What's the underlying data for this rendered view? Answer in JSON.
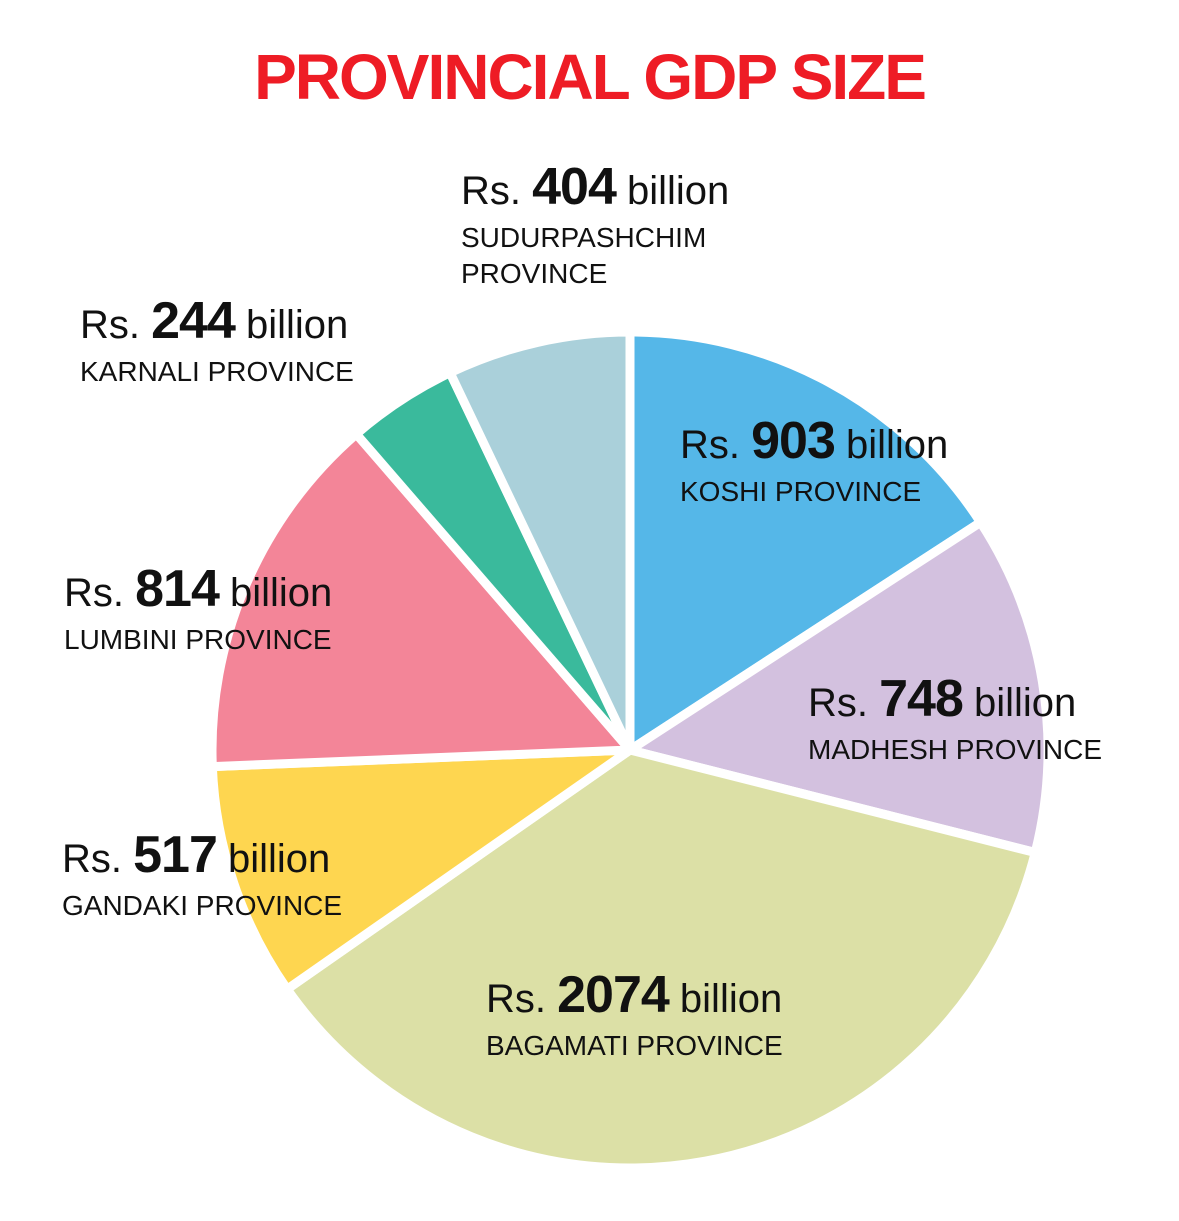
{
  "chart_data": {
    "type": "pie",
    "title": "PROVINCIAL GDP SIZE",
    "title_color": "#ee1c25",
    "slices": [
      {
        "name": "KOSHI PROVINCE",
        "prefix": "Rs.",
        "value": 903,
        "unit": "billion",
        "color": "#55b7e8"
      },
      {
        "name": "MADHESH PROVINCE",
        "prefix": "Rs.",
        "value": 748,
        "unit": "billion",
        "color": "#d3c1df"
      },
      {
        "name": "BAGAMATI PROVINCE",
        "prefix": "Rs.",
        "value": 2074,
        "unit": "billion",
        "color": "#dce0a6"
      },
      {
        "name": "GANDAKI PROVINCE",
        "prefix": "Rs.",
        "value": 517,
        "unit": "billion",
        "color": "#fed650"
      },
      {
        "name": "LUMBINI PROVINCE",
        "prefix": "Rs.",
        "value": 814,
        "unit": "billion",
        "color": "#f38598"
      },
      {
        "name": "KARNALI PROVINCE",
        "prefix": "Rs.",
        "value": 244,
        "unit": "billion",
        "color": "#3aba9c"
      },
      {
        "name": "SUDURPASHCHIM\nPROVINCE",
        "prefix": "Rs.",
        "value": 404,
        "unit": "billion",
        "color": "#aad0da"
      }
    ]
  }
}
